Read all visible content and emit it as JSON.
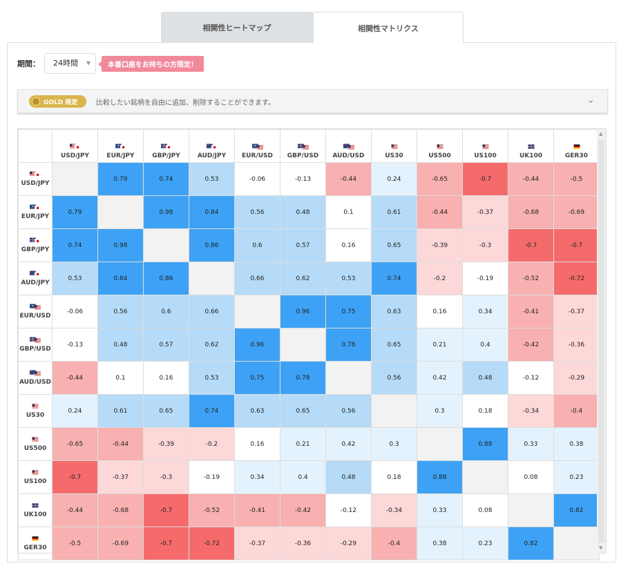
{
  "tabs": [
    {
      "label": "相関性ヒートマップ",
      "active": false
    },
    {
      "label": "相関性マトリクス",
      "active": true
    }
  ],
  "period": {
    "label": "期間：",
    "value": "24時間"
  },
  "promo": {
    "label": "本番口座をお持ちの方限定！"
  },
  "gold": {
    "badge": "GOLD 限定",
    "text": "比較したい銘柄を自由に追加、削除することができます。"
  },
  "colors": {
    "pos_strong": "#3da2f5",
    "pos_mid": "#b5dbf8",
    "pos_light": "#e4f2fd",
    "neg_strong": "#f56b6b",
    "neg_mid": "#f8b0b0",
    "neg_light": "#fcd8d8",
    "neutral": "#ffffff",
    "self": "#f2f2f2"
  },
  "symbols": [
    {
      "name": "USD/JPY",
      "flag": "us-jp"
    },
    {
      "name": "EUR/JPY",
      "flag": "eu-jp"
    },
    {
      "name": "GBP/JPY",
      "flag": "gb-jp"
    },
    {
      "name": "AUD/JPY",
      "flag": "au-jp"
    },
    {
      "name": "EUR/USD",
      "flag": "eu-us"
    },
    {
      "name": "GBP/USD",
      "flag": "gb-us"
    },
    {
      "name": "AUD/USD",
      "flag": "au-us"
    },
    {
      "name": "US30",
      "flag": "us"
    },
    {
      "name": "US500",
      "flag": "us"
    },
    {
      "name": "US100",
      "flag": "us"
    },
    {
      "name": "UK100",
      "flag": "gb"
    },
    {
      "name": "GER30",
      "flag": "de"
    }
  ],
  "matrix": [
    [
      null,
      0.79,
      0.74,
      0.53,
      -0.06,
      -0.13,
      -0.44,
      0.24,
      -0.65,
      -0.7,
      -0.44,
      -0.5
    ],
    [
      0.79,
      null,
      0.98,
      0.84,
      0.56,
      0.48,
      0.1,
      0.61,
      -0.44,
      -0.37,
      -0.68,
      -0.69
    ],
    [
      0.74,
      0.98,
      null,
      0.86,
      0.6,
      0.57,
      0.16,
      0.65,
      -0.39,
      -0.3,
      -0.7,
      -0.7
    ],
    [
      0.53,
      0.84,
      0.86,
      null,
      0.66,
      0.62,
      0.53,
      0.74,
      -0.2,
      -0.19,
      -0.52,
      -0.72
    ],
    [
      -0.06,
      0.56,
      0.6,
      0.66,
      null,
      0.96,
      0.75,
      0.63,
      0.16,
      0.34,
      -0.41,
      -0.37
    ],
    [
      -0.13,
      0.48,
      0.57,
      0.62,
      0.96,
      null,
      0.78,
      0.65,
      0.21,
      0.4,
      -0.42,
      -0.36
    ],
    [
      -0.44,
      0.1,
      0.16,
      0.53,
      0.75,
      0.78,
      null,
      0.56,
      0.42,
      0.48,
      -0.12,
      -0.29
    ],
    [
      0.24,
      0.61,
      0.65,
      0.74,
      0.63,
      0.65,
      0.56,
      null,
      0.3,
      0.18,
      -0.34,
      -0.4
    ],
    [
      -0.65,
      -0.44,
      -0.39,
      -0.2,
      0.16,
      0.21,
      0.42,
      0.3,
      null,
      0.88,
      0.33,
      0.38
    ],
    [
      -0.7,
      -0.37,
      -0.3,
      -0.19,
      0.34,
      0.4,
      0.48,
      0.18,
      0.88,
      null,
      0.08,
      0.23
    ],
    [
      -0.44,
      -0.68,
      -0.7,
      -0.52,
      -0.41,
      -0.42,
      -0.12,
      -0.34,
      0.33,
      0.08,
      null,
      0.82
    ],
    [
      -0.5,
      -0.69,
      -0.7,
      -0.72,
      -0.37,
      -0.36,
      -0.29,
      -0.4,
      0.38,
      0.23,
      0.82,
      null
    ]
  ]
}
